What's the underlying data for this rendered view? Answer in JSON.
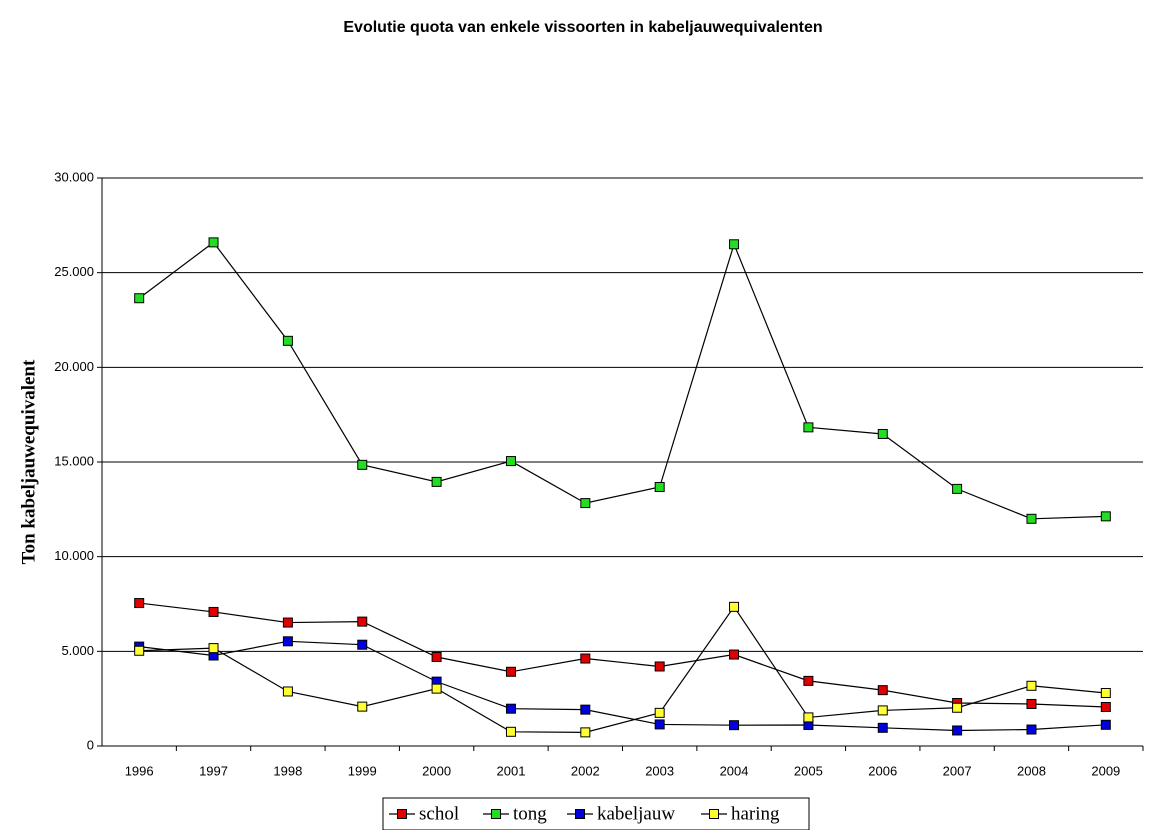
{
  "chart_data": {
    "type": "line",
    "title": "Evolutie quota van enkele vissoorten in kabeljauwequivalenten",
    "ylabel": "Ton kabeljauwequivalent",
    "categories": [
      "1996",
      "1997",
      "1998",
      "1999",
      "2000",
      "2001",
      "2002",
      "2003",
      "2004",
      "2005",
      "2006",
      "2007",
      "2008",
      "2009"
    ],
    "series": [
      {
        "name": "schol",
        "color": "#e00000",
        "values": [
          7550,
          7080,
          6520,
          6570,
          4700,
          3920,
          4620,
          4200,
          4830,
          3440,
          2950,
          2270,
          2220,
          2060
        ]
      },
      {
        "name": "tong",
        "color": "#22dd22",
        "values": [
          23650,
          26600,
          21400,
          14850,
          13950,
          15050,
          12830,
          13680,
          26500,
          16830,
          16480,
          13580,
          12000,
          12130
        ]
      },
      {
        "name": "kabeljauw",
        "color": "#0000dd",
        "values": [
          5250,
          4780,
          5530,
          5350,
          3400,
          1970,
          1920,
          1140,
          1100,
          1110,
          960,
          820,
          870,
          1120
        ]
      },
      {
        "name": "haring",
        "color": "#ffff33",
        "values": [
          5030,
          5170,
          2880,
          2080,
          3030,
          750,
          720,
          1750,
          7350,
          1510,
          1880,
          2020,
          3180,
          2800
        ]
      }
    ],
    "ylim": [
      0,
      30000
    ],
    "yticks": [
      0,
      {
        "value": 5000,
        "label": "5.000"
      },
      {
        "value": 10000,
        "label": "10.000"
      },
      {
        "value": 15000,
        "label": "15.000"
      },
      {
        "value": 20000,
        "label": "20.000"
      },
      {
        "value": 25000,
        "label": "25.000"
      },
      {
        "value": 30000,
        "label": "30.000"
      }
    ],
    "grid": true,
    "legend": "bottom"
  }
}
